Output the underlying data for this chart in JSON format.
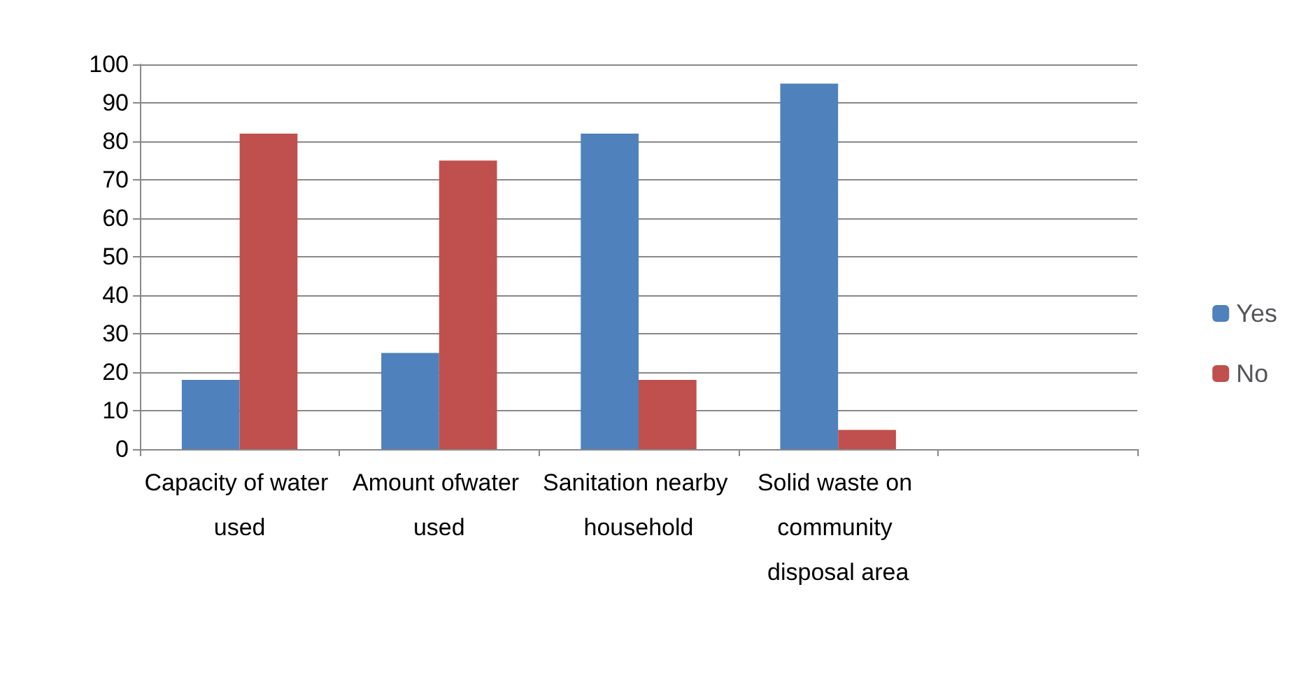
{
  "chart_data": {
    "type": "bar",
    "categories": [
      "Capacity of water used",
      "Amount ofwater used",
      "Sanitation nearby household",
      "Solid waste on community disposal area",
      null
    ],
    "series": [
      {
        "name": "Yes",
        "color": "#4f81bd",
        "values": [
          18,
          25,
          82,
          95,
          null
        ]
      },
      {
        "name": "No",
        "color": "#c0504d",
        "values": [
          82,
          75,
          18,
          5,
          null
        ]
      }
    ],
    "ylim": [
      0,
      100
    ],
    "yticks": [
      0,
      10,
      20,
      30,
      40,
      50,
      60,
      70,
      80,
      90,
      100
    ],
    "grid": "y",
    "legend": "right"
  }
}
